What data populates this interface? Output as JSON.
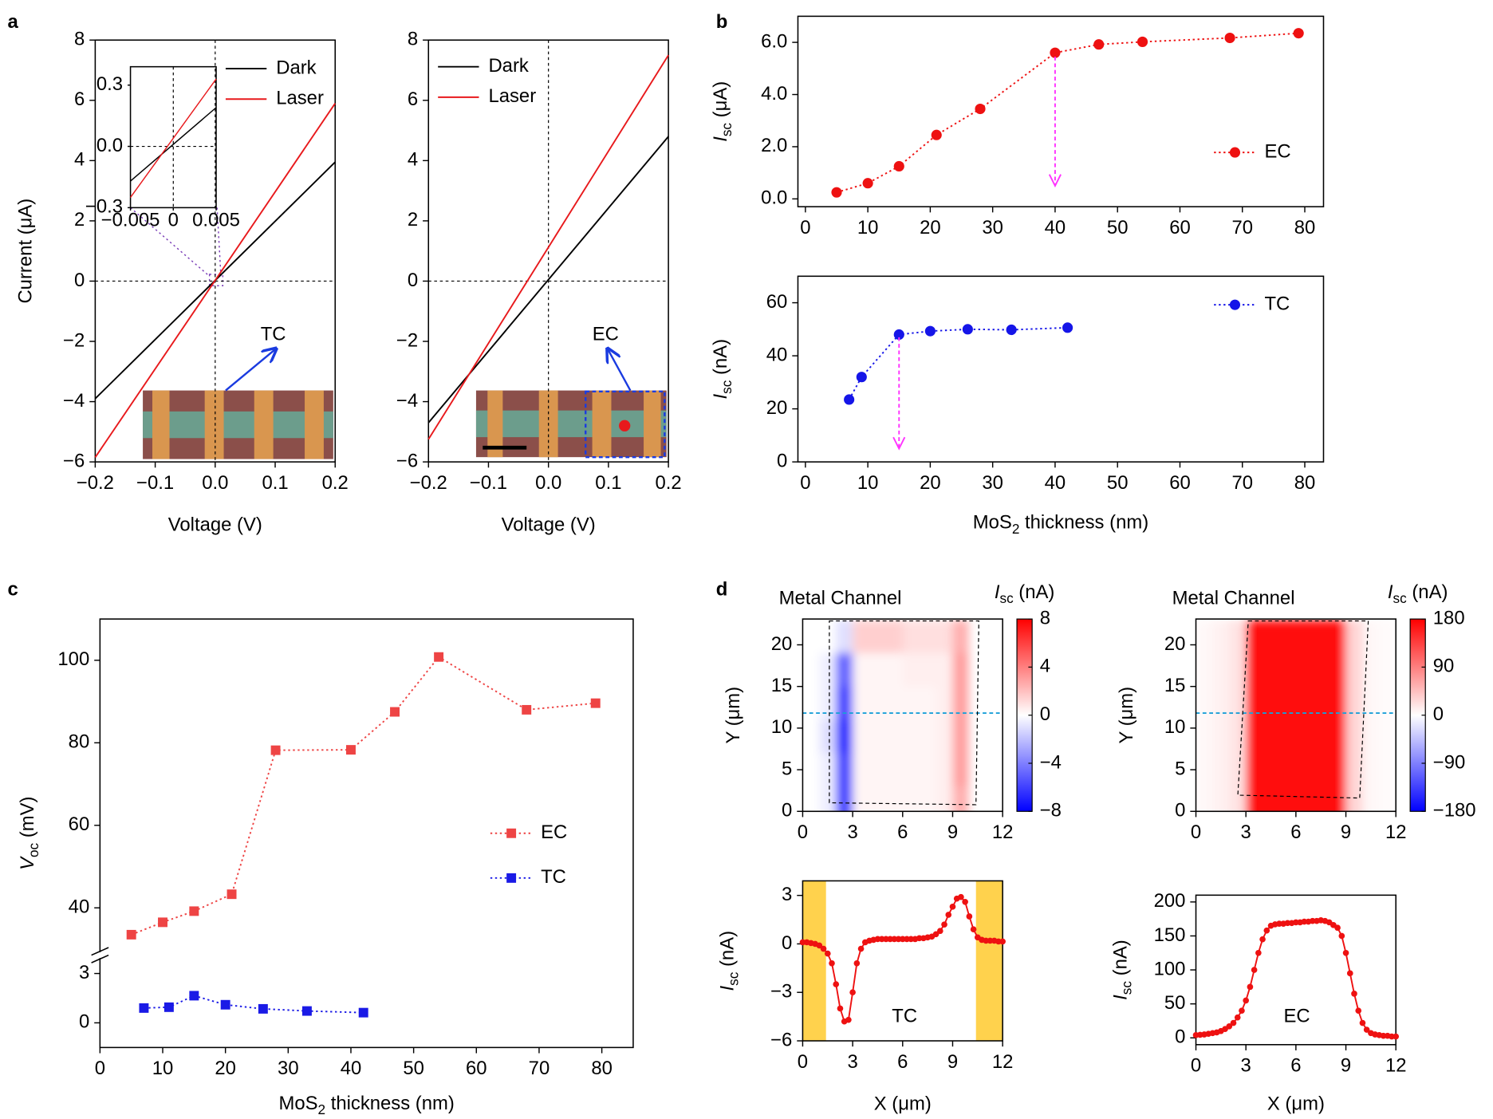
{
  "chart_data": [
    {
      "type": "line",
      "panel_label": "a",
      "xlabel": "Voltage (V)",
      "ylabel": "Current (μA)",
      "xlim": [
        -0.2,
        0.2
      ],
      "ylim": [
        -6,
        8
      ],
      "xticks": [
        {
          "value": -0.2,
          "label": "−0.2"
        },
        {
          "value": -0.1,
          "label": "−0.1"
        },
        {
          "value": 0,
          "label": "0.0"
        },
        0.1,
        0.2
      ],
      "yticks": [
        {
          "value": -6,
          "label": "−6"
        },
        {
          "value": -4,
          "label": "−4"
        },
        {
          "value": -2,
          "label": "−2"
        },
        0,
        2,
        4,
        6,
        8
      ],
      "zero_lines": true,
      "legend": "upper-right",
      "series": [
        {
          "name": "Dark",
          "color": "#000000",
          "x": [
            -0.2,
            0.2
          ],
          "values": [
            -3.9,
            3.95
          ]
        },
        {
          "name": "Laser",
          "color": "#e8191c",
          "x": [
            -0.2,
            0.2
          ],
          "values": [
            -5.85,
            5.9
          ]
        }
      ],
      "annotation": "TC"
    },
    {
      "type": "line",
      "xlim": [
        -0.005,
        0.005
      ],
      "ylim": [
        -0.3,
        0.39
      ],
      "xticks": [
        {
          "value": -0.005,
          "label": "−0.005"
        },
        0,
        0.005
      ],
      "yticks": [
        {
          "value": -0.3,
          "label": "−0.3"
        },
        {
          "value": 0,
          "label": "0.0"
        },
        0.3
      ],
      "zero_lines": true,
      "series": [
        {
          "color": "#000000",
          "x": [
            -0.005,
            0.005
          ],
          "values": [
            -0.17,
            0.19
          ]
        },
        {
          "color": "#e8191c",
          "x": [
            -0.005,
            0.005
          ],
          "values": [
            -0.25,
            0.33
          ]
        }
      ]
    },
    {
      "type": "line",
      "xlabel": "Voltage (V)",
      "xlim": [
        -0.2,
        0.2
      ],
      "ylim": [
        -6,
        8
      ],
      "xticks": [
        {
          "value": -0.2,
          "label": "−0.2"
        },
        {
          "value": -0.1,
          "label": "−0.1"
        },
        {
          "value": 0,
          "label": "0.0"
        },
        0.1,
        0.2
      ],
      "yticks": [
        {
          "value": -6,
          "label": "−6"
        },
        {
          "value": -4,
          "label": "−4"
        },
        {
          "value": -2,
          "label": "−2"
        },
        0,
        2,
        4,
        6,
        8
      ],
      "zero_lines": true,
      "legend": "upper-left",
      "series": [
        {
          "name": "Dark",
          "color": "#000000",
          "x": [
            -0.2,
            0.2
          ],
          "values": [
            -4.7,
            4.8
          ]
        },
        {
          "name": "Laser",
          "color": "#e8191c",
          "x": [
            -0.2,
            0.2
          ],
          "values": [
            -5.25,
            7.5
          ]
        }
      ],
      "annotation": "EC"
    },
    {
      "type": "line",
      "panel_label": "b",
      "ylabel": [
        "I",
        "sc",
        " (μA)"
      ],
      "xlim": [
        -1.2,
        83
      ],
      "ylim": [
        -0.3,
        7
      ],
      "xticks": [
        0,
        10,
        20,
        30,
        40,
        50,
        60,
        70,
        80
      ],
      "yticks": [
        {
          "value": 0,
          "label": "0.0"
        },
        {
          "value": 2,
          "label": "2.0"
        },
        {
          "value": 4,
          "label": "4.0"
        },
        {
          "value": 6,
          "label": "6.0"
        }
      ],
      "legend": "lower-right",
      "line_style": "dotted",
      "marker": "circle",
      "series": [
        {
          "name": "EC",
          "color": "#ee1111",
          "x": [
            5,
            10,
            15,
            21,
            28,
            40,
            47,
            54,
            68,
            79
          ],
          "values": [
            0.25,
            0.6,
            1.25,
            2.45,
            3.45,
            5.6,
            5.92,
            6.02,
            6.17,
            6.35
          ]
        }
      ],
      "arrow": {
        "x": 40,
        "from": 5.45,
        "to": 0.5,
        "color": "#ff33ff"
      }
    },
    {
      "type": "line",
      "xlabel": [
        "MoS",
        "2",
        " thickness (nm)"
      ],
      "ylabel": [
        "I",
        "sc",
        " (nA)"
      ],
      "xlim": [
        -1.2,
        83
      ],
      "ylim": [
        0,
        70
      ],
      "xticks": [
        0,
        10,
        20,
        30,
        40,
        50,
        60,
        70,
        80
      ],
      "yticks": [
        0,
        20,
        40,
        60
      ],
      "legend": "upper-right",
      "line_style": "dotted",
      "marker": "circle",
      "series": [
        {
          "name": "TC",
          "color": "#1515e8",
          "x": [
            7,
            9,
            15,
            20,
            26,
            33,
            42
          ],
          "values": [
            23.5,
            32,
            48,
            49.3,
            50,
            49.8,
            50.6
          ]
        }
      ],
      "arrow": {
        "x": 15,
        "from": 47,
        "to": 5,
        "color": "#ff33ff"
      }
    },
    {
      "type": "line",
      "panel_label": "c",
      "xlabel": [
        "MoS",
        "2",
        " thickness (nm)"
      ],
      "ylabel": [
        "V",
        "oc",
        " (mV)"
      ],
      "xlim": [
        0,
        85
      ],
      "ylim": [
        -1.5,
        110
      ],
      "ybreak": [
        4,
        29
      ],
      "xticks": [
        0,
        10,
        20,
        30,
        40,
        50,
        60,
        70,
        80
      ],
      "yticks": [
        0,
        3,
        40,
        60,
        80,
        100
      ],
      "legend": "right",
      "line_style": "dotted",
      "marker": "square",
      "series": [
        {
          "name": "EC",
          "color": "#ee4444",
          "x": [
            5,
            10,
            15,
            21,
            28,
            40,
            47,
            54,
            68,
            79
          ],
          "values": [
            33.5,
            36.5,
            39.2,
            43.3,
            78.2,
            78.3,
            87.5,
            100.8,
            88,
            89.6
          ]
        },
        {
          "name": "TC",
          "color": "#1a1ae6",
          "x": [
            7,
            11,
            15,
            20,
            26,
            33,
            42
          ],
          "values": [
            0.9,
            0.95,
            1.65,
            1.1,
            0.85,
            0.72,
            0.62
          ]
        }
      ]
    },
    {
      "type": "heatmap",
      "panel_label": "d",
      "title": "Metal Channel",
      "ylabel": "Y (μm)",
      "colorbar_title": [
        "I",
        "sc",
        " (nA)"
      ],
      "xlim": [
        0,
        12
      ],
      "ylim": [
        0,
        23.1
      ],
      "xticks": [
        0,
        3,
        6,
        9,
        12
      ],
      "yticks": [
        0,
        5,
        10,
        15,
        20
      ],
      "x": [
        0.5,
        1.5,
        2.5,
        3.5,
        4.5,
        5.5,
        6.5,
        7.5,
        8.5,
        9.5,
        10.5,
        11.5
      ],
      "y": [
        21,
        17,
        13,
        9,
        5,
        1
      ],
      "z": [
        [
          0,
          0,
          -1,
          1.5,
          1.5,
          1.5,
          1,
          1,
          1,
          2.5,
          0,
          0
        ],
        [
          0,
          -0.5,
          -5,
          0.3,
          0.3,
          0.3,
          0.5,
          0.5,
          0.5,
          3,
          0,
          0
        ],
        [
          0,
          -0.5,
          -6,
          0.3,
          0.3,
          0.3,
          0.3,
          0.3,
          0.5,
          3,
          0,
          0
        ],
        [
          0,
          -1,
          -7,
          0.3,
          0.3,
          0.3,
          0.3,
          0.3,
          0.5,
          3,
          0,
          0
        ],
        [
          0,
          -0.5,
          -6,
          0.3,
          0.3,
          0.3,
          0.3,
          0.3,
          0.5,
          3,
          0,
          0
        ],
        [
          0,
          -0.5,
          -6,
          0.3,
          0.3,
          0.3,
          0.3,
          0.3,
          0.5,
          2.5,
          0,
          0
        ]
      ],
      "zlim": [
        -8,
        8
      ],
      "cticks": [
        8,
        4,
        0,
        {
          "value": -4,
          "label": "−4"
        },
        {
          "value": -8,
          "label": "−8"
        }
      ],
      "colorscale": [
        "#0000ff",
        "#ffffff",
        "#ff0000"
      ],
      "cut_y": 11.8,
      "cut_color": "#1a9fd8"
    },
    {
      "type": "heatmap",
      "title": "Metal Channel",
      "ylabel": "Y (μm)",
      "colorbar_title": [
        "I",
        "sc",
        " (nA)"
      ],
      "xlim": [
        0,
        12
      ],
      "ylim": [
        0,
        23.1
      ],
      "xticks": [
        0,
        3,
        6,
        9,
        12
      ],
      "yticks": [
        0,
        5,
        10,
        15,
        20
      ],
      "x": [
        0.5,
        1.5,
        2.5,
        3.5,
        4.5,
        5.5,
        6.5,
        7.5,
        8.5,
        9.5,
        10.5,
        11.5
      ],
      "y": [
        21,
        17,
        13,
        9,
        5,
        1
      ],
      "z": [
        [
          5,
          10,
          20,
          170,
          175,
          175,
          175,
          175,
          170,
          30,
          5,
          3
        ],
        [
          5,
          10,
          20,
          170,
          175,
          175,
          175,
          175,
          170,
          30,
          5,
          3
        ],
        [
          5,
          10,
          20,
          170,
          175,
          175,
          175,
          175,
          170,
          30,
          5,
          3
        ],
        [
          5,
          10,
          20,
          170,
          175,
          175,
          175,
          175,
          170,
          30,
          5,
          3
        ],
        [
          5,
          10,
          20,
          170,
          175,
          175,
          175,
          175,
          170,
          30,
          5,
          3
        ],
        [
          5,
          10,
          20,
          170,
          175,
          175,
          175,
          175,
          170,
          30,
          5,
          3
        ]
      ],
      "zlim": [
        -180,
        180
      ],
      "cticks": [
        180,
        90,
        0,
        {
          "value": -90,
          "label": "−90"
        },
        {
          "value": -180,
          "label": "−180"
        }
      ],
      "colorscale": [
        "#0000ff",
        "#ffffff",
        "#ff0000"
      ],
      "cut_y": 11.8,
      "cut_color": "#1a9fd8"
    },
    {
      "type": "line",
      "xlabel": "X (μm)",
      "ylabel": [
        "I",
        "sc",
        " (nA)"
      ],
      "xlim": [
        0,
        12
      ],
      "ylim": [
        -6,
        3.9
      ],
      "xticks": [
        0,
        3,
        6,
        9,
        12
      ],
      "yticks": [
        {
          "value": -6,
          "label": "−6"
        },
        {
          "value": -3,
          "label": "−3"
        },
        0,
        3
      ],
      "marker": "circle",
      "shade": [
        [
          0,
          1.4
        ],
        [
          10.4,
          12
        ]
      ],
      "shade_color": "#ffd24d",
      "series": [
        {
          "color": "#ee1111",
          "x": [
            0,
            0.25,
            0.5,
            0.75,
            1,
            1.25,
            1.5,
            1.75,
            2,
            2.25,
            2.5,
            2.75,
            3,
            3.25,
            3.5,
            3.75,
            4,
            4.25,
            4.5,
            4.75,
            5,
            5.25,
            5.5,
            5.75,
            6,
            6.25,
            6.5,
            6.75,
            7,
            7.25,
            7.5,
            7.75,
            8,
            8.25,
            8.5,
            8.75,
            9,
            9.25,
            9.5,
            9.75,
            10,
            10.25,
            10.5,
            10.75,
            11,
            11.25,
            11.5,
            11.75,
            12
          ],
          "values": [
            0.1,
            0.1,
            0.05,
            0,
            -0.1,
            -0.3,
            -0.6,
            -1.2,
            -2.5,
            -4,
            -4.8,
            -4.7,
            -3,
            -1.2,
            -0.3,
            0.1,
            0.2,
            0.25,
            0.3,
            0.3,
            0.3,
            0.3,
            0.3,
            0.3,
            0.3,
            0.3,
            0.3,
            0.3,
            0.35,
            0.35,
            0.4,
            0.45,
            0.6,
            0.8,
            1.2,
            1.8,
            2.3,
            2.8,
            2.9,
            2.6,
            1.7,
            0.9,
            0.4,
            0.25,
            0.2,
            0.2,
            0.2,
            0.15,
            0.15
          ]
        }
      ],
      "annotation": "TC"
    },
    {
      "type": "line",
      "xlabel": "X (μm)",
      "ylabel": [
        "I",
        "sc",
        " (nA)"
      ],
      "xlim": [
        0,
        12
      ],
      "ylim": [
        -10,
        210
      ],
      "xticks": [
        0,
        3,
        6,
        9,
        12
      ],
      "yticks": [
        0,
        50,
        100,
        150,
        200
      ],
      "marker": "circle",
      "series": [
        {
          "color": "#ee1111",
          "x": [
            0,
            0.25,
            0.5,
            0.75,
            1,
            1.25,
            1.5,
            1.75,
            2,
            2.25,
            2.5,
            2.75,
            3,
            3.25,
            3.5,
            3.75,
            4,
            4.25,
            4.5,
            4.75,
            5,
            5.25,
            5.5,
            5.75,
            6,
            6.25,
            6.5,
            6.75,
            7,
            7.25,
            7.5,
            7.75,
            8,
            8.25,
            8.5,
            8.75,
            9,
            9.25,
            9.5,
            9.75,
            10,
            10.25,
            10.5,
            10.75,
            11,
            11.25,
            11.5,
            11.75,
            12
          ],
          "values": [
            4,
            4.5,
            5,
            6,
            7,
            8,
            10,
            13,
            17,
            22,
            30,
            40,
            55,
            75,
            100,
            125,
            145,
            158,
            165,
            167,
            168,
            168,
            169,
            169,
            170,
            170,
            171,
            171,
            172,
            172,
            173,
            172,
            170,
            166,
            162,
            150,
            125,
            95,
            65,
            40,
            22,
            12,
            7,
            5,
            4,
            3,
            3,
            2,
            2
          ]
        }
      ],
      "annotation": "EC"
    }
  ]
}
